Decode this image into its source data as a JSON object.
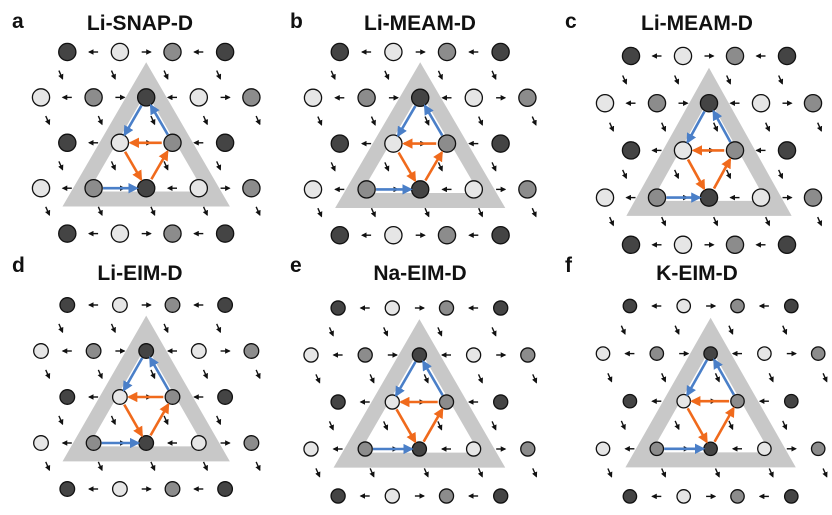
{
  "figure": {
    "panels": [
      {
        "letter": "a",
        "title": "Li-SNAP-D",
        "atom_radius": 1.0
      },
      {
        "letter": "b",
        "title": "Li-MEAM-D",
        "atom_radius": 1.0
      },
      {
        "letter": "c",
        "title": "Li-MEAM-D",
        "atom_radius": 1.0
      },
      {
        "letter": "d",
        "title": "Li-EIM-D",
        "atom_radius": 0.85
      },
      {
        "letter": "e",
        "title": "Na-EIM-D",
        "atom_radius": 0.82
      },
      {
        "letter": "f",
        "title": "K-EIM-D",
        "atom_radius": 0.78
      }
    ],
    "colors": {
      "triangle": "#c8c8c8",
      "blue_arrow": "#4a7fc8",
      "orange_arrow": "#f06a1c",
      "black_arrow": "#111111",
      "atom_dark": "#444444",
      "atom_mid": "#8c8c8c",
      "atom_light": "#e6e6e6",
      "atom_outline": "#111111"
    },
    "legend": "none"
  }
}
